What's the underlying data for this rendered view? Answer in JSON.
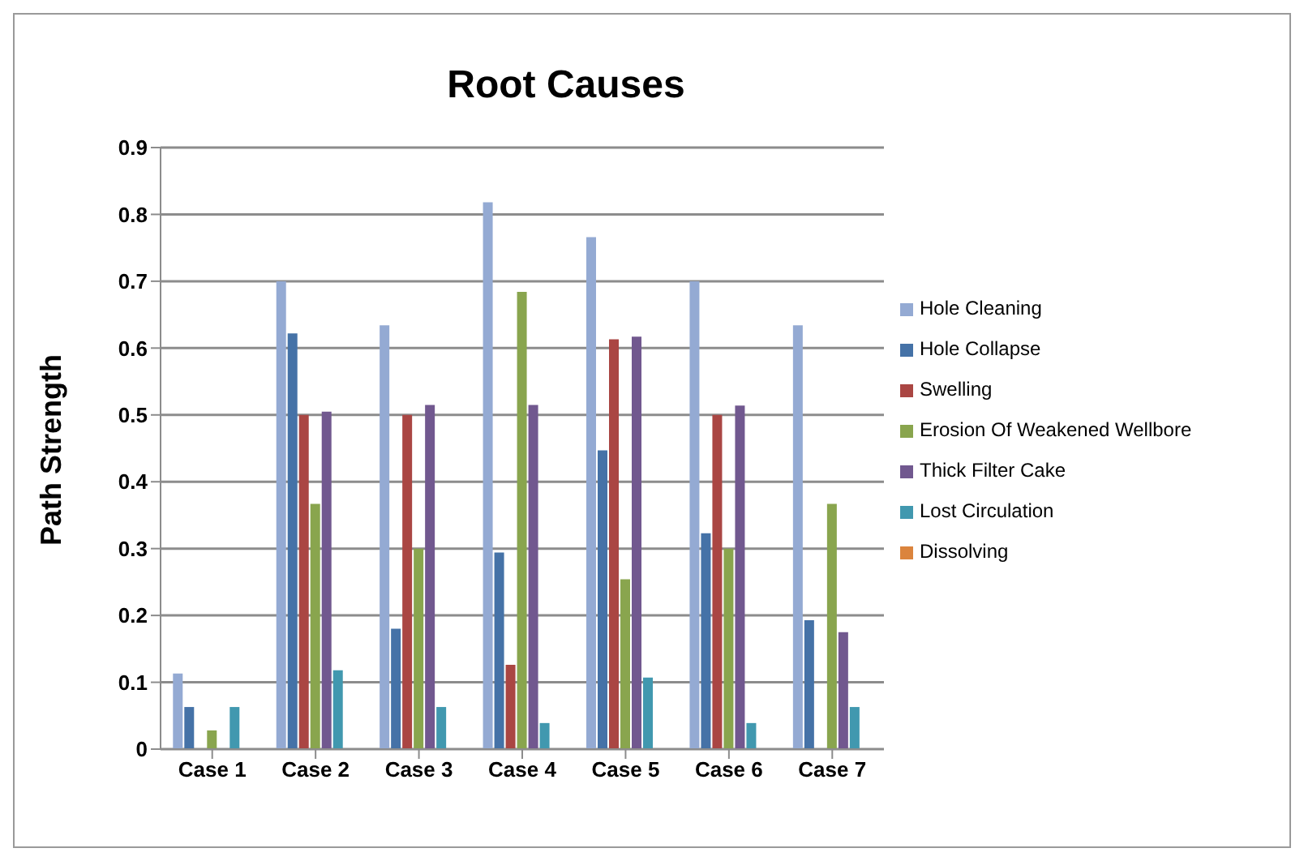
{
  "chart_data": {
    "type": "bar",
    "title": "Root Causes",
    "ylabel": "Path Strength",
    "categories": [
      "Case 1",
      "Case 2",
      "Case 3",
      "Case 4",
      "Case 5",
      "Case 6",
      "Case 7"
    ],
    "series": [
      {
        "name": "Hole Cleaning",
        "color": "#94aad3",
        "values": [
          0.113,
          0.7,
          0.634,
          0.818,
          0.766,
          0.7,
          0.634
        ]
      },
      {
        "name": "Hole Collapse",
        "color": "#4572a7",
        "values": [
          0.063,
          0.622,
          0.18,
          0.294,
          0.447,
          0.323,
          0.193
        ]
      },
      {
        "name": "Swelling",
        "color": "#aa4643",
        "values": [
          0,
          0.5,
          0.5,
          0.126,
          0.613,
          0.5,
          0
        ]
      },
      {
        "name": "Erosion Of Weakened Wellbore",
        "color": "#89a54e",
        "values": [
          0.028,
          0.367,
          0.3,
          0.684,
          0.254,
          0.3,
          0.367
        ]
      },
      {
        "name": "Thick Filter Cake",
        "color": "#71588f",
        "values": [
          0,
          0.505,
          0.515,
          0.515,
          0.617,
          0.514,
          0.175
        ]
      },
      {
        "name": "Lost Circulation",
        "color": "#4198af",
        "values": [
          0.063,
          0.118,
          0.063,
          0.039,
          0.107,
          0.039,
          0.063
        ]
      },
      {
        "name": "Dissolving",
        "color": "#db843d",
        "values": [
          0,
          0,
          0,
          0,
          0,
          0,
          0
        ]
      }
    ],
    "ylim": [
      0,
      0.9
    ],
    "yticks": [
      0,
      0.1,
      0.2,
      0.3,
      0.4,
      0.5,
      0.6,
      0.7,
      0.8,
      0.9
    ],
    "grid": "y",
    "legend": "right"
  }
}
